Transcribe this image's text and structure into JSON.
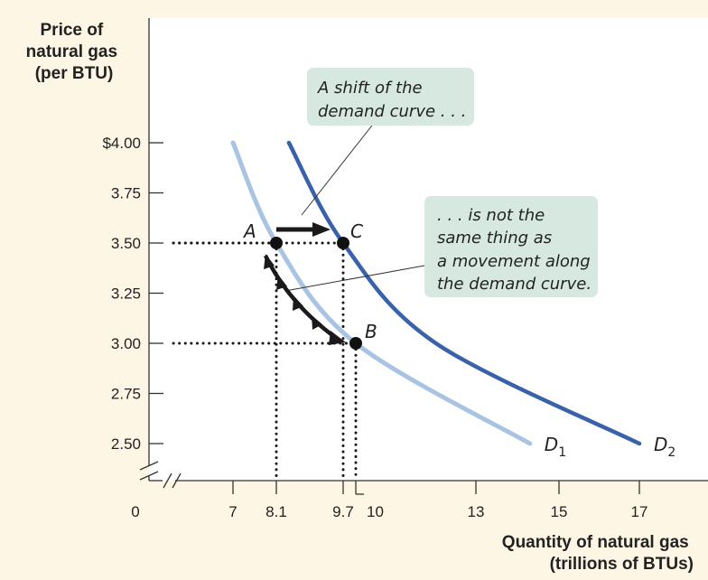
{
  "chart_data": {
    "type": "line",
    "y_axis_title": [
      "Price of",
      "natural gas",
      "(per BTU)"
    ],
    "x_axis_title": [
      "Quantity of natural gas",
      "(trillions of BTUs)"
    ],
    "origin_label": "0",
    "x_ticks": [
      {
        "value": 7,
        "label": "7"
      },
      {
        "value": 8.1,
        "label": "8.1"
      },
      {
        "value": 9.7,
        "label": "9.7"
      },
      {
        "value": 10,
        "label": "10"
      },
      {
        "value": 13,
        "label": "13"
      },
      {
        "value": 15,
        "label": "15"
      },
      {
        "value": 17,
        "label": "17"
      }
    ],
    "y_ticks": [
      {
        "value": 4.0,
        "label": "$4.00"
      },
      {
        "value": 3.75,
        "label": "3.75"
      },
      {
        "value": 3.5,
        "label": "3.50"
      },
      {
        "value": 3.25,
        "label": "3.25"
      },
      {
        "value": 3.0,
        "label": "3.00"
      },
      {
        "value": 2.75,
        "label": "2.75"
      },
      {
        "value": 2.5,
        "label": "2.50"
      }
    ],
    "series": [
      {
        "name": "D1",
        "name_main": "D",
        "name_sub": "1",
        "color": "#a9c3e3",
        "x": [
          7,
          8.1,
          10,
          14.3
        ],
        "y": [
          4.0,
          3.5,
          3.0,
          2.5
        ]
      },
      {
        "name": "D2",
        "name_main": "D",
        "name_sub": "2",
        "color": "#3a62aa",
        "x": [
          8.4,
          9.7,
          12,
          17
        ],
        "y": [
          4.0,
          3.5,
          3.0,
          2.5
        ]
      }
    ],
    "points": [
      {
        "label": "A",
        "x": 8.1,
        "y": 3.5
      },
      {
        "label": "C",
        "x": 9.7,
        "y": 3.5
      },
      {
        "label": "B",
        "x": 10,
        "y": 3.0
      }
    ],
    "annotations": [
      {
        "lines": [
          "A shift of the",
          "demand curve . . ."
        ]
      },
      {
        "lines": [
          ". . . is not the",
          "same thing as",
          "a movement along",
          "the demand curve."
        ]
      }
    ]
  },
  "colors": {
    "background": "#fef6e4",
    "plot_area": "#ffffff",
    "callout_fill": "#d7e8e1",
    "d1": "#a9c3e3",
    "d2": "#3a62aa",
    "arrow": "#1a1a1a"
  }
}
